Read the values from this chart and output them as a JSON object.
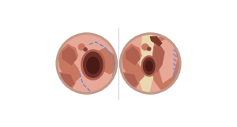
{
  "fig_width": 3.0,
  "fig_height": 1.61,
  "dpi": 100,
  "bg_color": "#ffffff",
  "flesh_light": "#e8a898",
  "flesh_mid": "#c87860",
  "flesh_dark": "#b06050",
  "bone_color": "#e8d8b0",
  "dashed_color": "#6688cc",
  "suture_color": "#8888cc",
  "dark_cavity": "#8b4040",
  "perf_outer": "#6a2e28",
  "perf_inner": "#4a1a14",
  "rim_color": "#c09888",
  "gap_color": "#7a3828"
}
